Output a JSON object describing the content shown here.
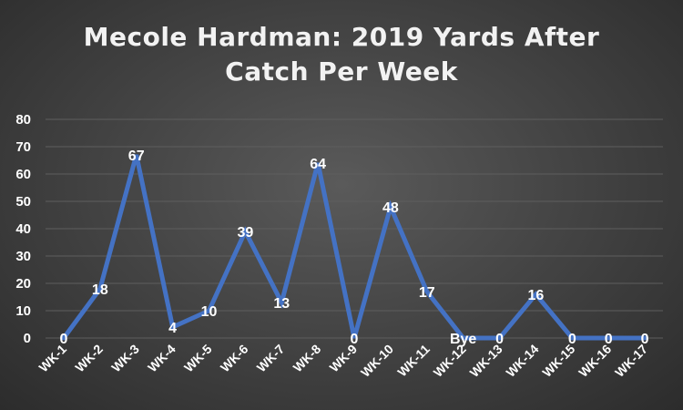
{
  "chart_data": {
    "type": "line",
    "title_lines": [
      "Mecole Hardman: 2019 Yards After",
      "Catch Per Week"
    ],
    "xlabel": "",
    "ylabel": "",
    "categories": [
      "WK-1",
      "WK-2",
      "WK-3",
      "WK-4",
      "WK-5",
      "WK-6",
      "WK-7",
      "WK-8",
      "WK-9",
      "WK-10",
      "WK-11",
      "WK-12",
      "WK-13",
      "WK-14",
      "WK-15",
      "WK-16",
      "WK-17"
    ],
    "series": [
      {
        "values": [
          0,
          18,
          67,
          4,
          10,
          39,
          13,
          64,
          0,
          48,
          17,
          0,
          0,
          16,
          0,
          0,
          0
        ],
        "data_labels": [
          "0",
          "18",
          "67",
          "4",
          "10",
          "39",
          "13",
          "64",
          "0",
          "48",
          "17",
          "Bye",
          "0",
          "16",
          "0",
          "0",
          "0"
        ],
        "color": "#4472C4"
      }
    ],
    "ylim": [
      0,
      80
    ],
    "yticks": [
      0,
      10,
      20,
      30,
      40,
      50,
      60,
      70,
      80
    ],
    "grid": true,
    "legend": "none",
    "colors": {
      "background": "#404040",
      "gridline": "#5e5e5e",
      "text": "#ffffff",
      "line": "#4472C4"
    }
  }
}
